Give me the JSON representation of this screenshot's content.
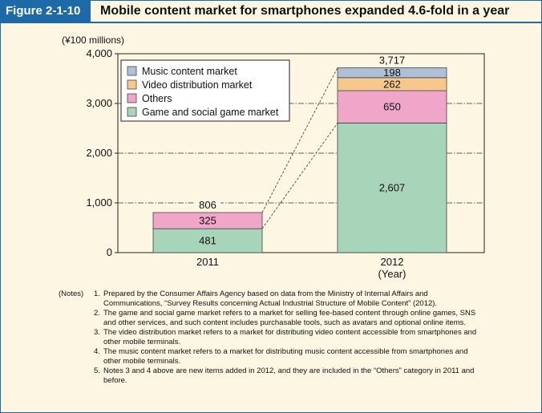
{
  "figure": {
    "label": "Figure 2-1-10",
    "title": "Mobile content market for smartphones expanded 4.6-fold in a year"
  },
  "chart_data": {
    "type": "bar",
    "stacked": true,
    "unit_label": "(¥100 millions)",
    "categories": [
      "2011",
      "2012"
    ],
    "x_unit_label": "(Year)",
    "ylim": [
      0,
      4000
    ],
    "yticks": [
      0,
      1000,
      2000,
      3000,
      4000
    ],
    "ytick_labels": [
      "0",
      "1,000",
      "2,000",
      "3,000",
      "4,000"
    ],
    "grid": "dash-dot at 1,000 / 2,000 / 3,000",
    "legend_position": "top-left",
    "series": [
      {
        "name": "Game and social game market",
        "values": [
          481,
          2607
        ],
        "labels": [
          "481",
          "2,607"
        ],
        "color": "#a8d5ba"
      },
      {
        "name": "Others",
        "values": [
          325,
          650
        ],
        "labels": [
          "325",
          "650"
        ],
        "color": "#efa6c8"
      },
      {
        "name": "Video distribution market",
        "values": [
          0,
          262
        ],
        "labels": [
          "",
          "262"
        ],
        "color": "#f5c98c"
      },
      {
        "name": "Music content market",
        "values": [
          0,
          198
        ],
        "labels": [
          "",
          "198"
        ],
        "color": "#aebfd6"
      }
    ],
    "totals": [
      806,
      3717
    ],
    "total_labels": [
      "806",
      "3,717"
    ]
  },
  "notes": [
    {
      "prefix": "(Notes)",
      "num": "1.",
      "text": "Prepared by the Consumer Affairs Agency based on data from the Ministry of Internal Affairs and Communications, “Survey Results concerning Actual Industrial Structure of Mobile Content” (2012)."
    },
    {
      "prefix": "",
      "num": "2.",
      "text": "The game and social game market refers to a market for selling fee-based content through online games, SNS and other services, and such content includes purchasable tools, such as avatars and optional online items."
    },
    {
      "prefix": "",
      "num": "3.",
      "text": "The video distribution market refers to a market for distributing video content accessible from smartphones and other mobile terminals."
    },
    {
      "prefix": "",
      "num": "4.",
      "text": "The music content market refers to a market for distributing music content accessible from smartphones and other mobile terminals."
    },
    {
      "prefix": "",
      "num": "5.",
      "text": "Notes 3 and 4 above are new items added in 2012, and they are included in the “Others” category in 2011 and before."
    }
  ]
}
